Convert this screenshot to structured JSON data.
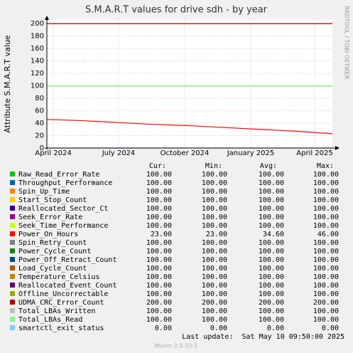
{
  "chart_data": {
    "type": "line",
    "title": "S.M.A.R.T values for drive sdh - by year",
    "y_label": "Attribute S.M.A.R.T value",
    "side_text": "RRDTOOL / TOBI OETIKER",
    "x": [
      0,
      50,
      100,
      150,
      200,
      250,
      300,
      350,
      402
    ],
    "xlim": [
      0,
      402
    ],
    "xticks": [
      {
        "value": 9,
        "label": "April 2024"
      },
      {
        "value": 101,
        "label": "July 2024"
      },
      {
        "value": 194,
        "label": "October 2024"
      },
      {
        "value": 287,
        "label": "January 2025"
      },
      {
        "value": 377,
        "label": "April 2025"
      }
    ],
    "ylim": [
      0,
      206
    ],
    "yticks": [
      0,
      20,
      40,
      60,
      80,
      100,
      120,
      140,
      160,
      180,
      200
    ],
    "grid": true,
    "legend_columns": [
      "Cur:",
      "Min:",
      "Avg:",
      "Max:"
    ],
    "series": [
      {
        "name": "Raw_Read_Error_Rate",
        "color": "#00cc00",
        "values": [
          100,
          100,
          100,
          100,
          100,
          100,
          100,
          100,
          100
        ],
        "stats": [
          "100.00",
          "100.00",
          "100.00",
          "100.00"
        ]
      },
      {
        "name": "Throughput_Performance",
        "color": "#0066b3",
        "values": [
          100,
          100,
          100,
          100,
          100,
          100,
          100,
          100,
          100
        ],
        "stats": [
          "100.00",
          "100.00",
          "100.00",
          "100.00"
        ]
      },
      {
        "name": "Spin_Up_Time",
        "color": "#ff8000",
        "values": [
          100,
          100,
          100,
          100,
          100,
          100,
          100,
          100,
          100
        ],
        "stats": [
          "100.00",
          "100.00",
          "100.00",
          "100.00"
        ]
      },
      {
        "name": "Start_Stop_Count",
        "color": "#ffcc00",
        "values": [
          100,
          100,
          100,
          100,
          100,
          100,
          100,
          100,
          100
        ],
        "stats": [
          "100.00",
          "100.00",
          "100.00",
          "100.00"
        ]
      },
      {
        "name": "Reallocated_Sector_Ct",
        "color": "#330099",
        "values": [
          100,
          100,
          100,
          100,
          100,
          100,
          100,
          100,
          100
        ],
        "stats": [
          "100.00",
          "100.00",
          "100.00",
          "100.00"
        ]
      },
      {
        "name": "Seek_Error_Rate",
        "color": "#990099",
        "values": [
          100,
          100,
          100,
          100,
          100,
          100,
          100,
          100,
          100
        ],
        "stats": [
          "100.00",
          "100.00",
          "100.00",
          "100.00"
        ]
      },
      {
        "name": "Seek_Time_Performance",
        "color": "#ccff00",
        "values": [
          100,
          100,
          100,
          100,
          100,
          100,
          100,
          100,
          100
        ],
        "stats": [
          "100.00",
          "100.00",
          "100.00",
          "100.00"
        ]
      },
      {
        "name": "Power_On_Hours",
        "color": "#ff0000",
        "values": [
          46,
          44,
          41,
          38,
          36,
          33,
          30,
          27,
          23
        ],
        "stats": [
          "23.00",
          "23.00",
          "34.60",
          "46.00"
        ]
      },
      {
        "name": "Spin_Retry_Count",
        "color": "#808080",
        "values": [
          100,
          100,
          100,
          100,
          100,
          100,
          100,
          100,
          100
        ],
        "stats": [
          "100.00",
          "100.00",
          "100.00",
          "100.00"
        ]
      },
      {
        "name": "Power_Cycle_Count",
        "color": "#008f00",
        "values": [
          100,
          100,
          100,
          100,
          100,
          100,
          100,
          100,
          100
        ],
        "stats": [
          "100.00",
          "100.00",
          "100.00",
          "100.00"
        ]
      },
      {
        "name": "Power_Off_Retract_Count",
        "color": "#00487d",
        "values": [
          100,
          100,
          100,
          100,
          100,
          100,
          100,
          100,
          100
        ],
        "stats": [
          "100.00",
          "100.00",
          "100.00",
          "100.00"
        ]
      },
      {
        "name": "Load_Cycle_Count",
        "color": "#b35a00",
        "values": [
          100,
          100,
          100,
          100,
          100,
          100,
          100,
          100,
          100
        ],
        "stats": [
          "100.00",
          "100.00",
          "100.00",
          "100.00"
        ]
      },
      {
        "name": "Temperature_Celsius",
        "color": "#b38f00",
        "values": [
          100,
          100,
          100,
          100,
          100,
          100,
          100,
          100,
          100
        ],
        "stats": [
          "100.00",
          "100.00",
          "100.00",
          "100.00"
        ]
      },
      {
        "name": "Reallocated_Event_Count",
        "color": "#6b006b",
        "values": [
          100,
          100,
          100,
          100,
          100,
          100,
          100,
          100,
          100
        ],
        "stats": [
          "100.00",
          "100.00",
          "100.00",
          "100.00"
        ]
      },
      {
        "name": "Offline_Uncorrectable",
        "color": "#8fb300",
        "values": [
          100,
          100,
          100,
          100,
          100,
          100,
          100,
          100,
          100
        ],
        "stats": [
          "100.00",
          "100.00",
          "100.00",
          "100.00"
        ]
      },
      {
        "name": "UDMA_CRC_Error_Count",
        "color": "#b30000",
        "values": [
          200,
          200,
          200,
          200,
          200,
          200,
          200,
          200,
          200
        ],
        "stats": [
          "200.00",
          "200.00",
          "200.00",
          "200.00"
        ]
      },
      {
        "name": "Total_LBAs_Written",
        "color": "#bebebe",
        "values": [
          100,
          100,
          100,
          100,
          100,
          100,
          100,
          100,
          100
        ],
        "stats": [
          "100.00",
          "100.00",
          "100.00",
          "100.00"
        ]
      },
      {
        "name": "Total_LBAs_Read",
        "color": "#80ff80",
        "values": [
          100,
          100,
          100,
          100,
          100,
          100,
          100,
          100,
          100
        ],
        "stats": [
          "100.00",
          "100.00",
          "100.00",
          "100.00"
        ]
      },
      {
        "name": "smartctl_exit_status",
        "color": "#80c9ff",
        "values": [
          0,
          0,
          0,
          0,
          0,
          0,
          0,
          0,
          0
        ],
        "stats": [
          "0.00",
          "0.00",
          "0.00",
          "0.00"
        ]
      }
    ],
    "last_update": "Last update:  Sat May 10 09:50:00 2025",
    "footer": "Munin 2.0.33-1"
  }
}
